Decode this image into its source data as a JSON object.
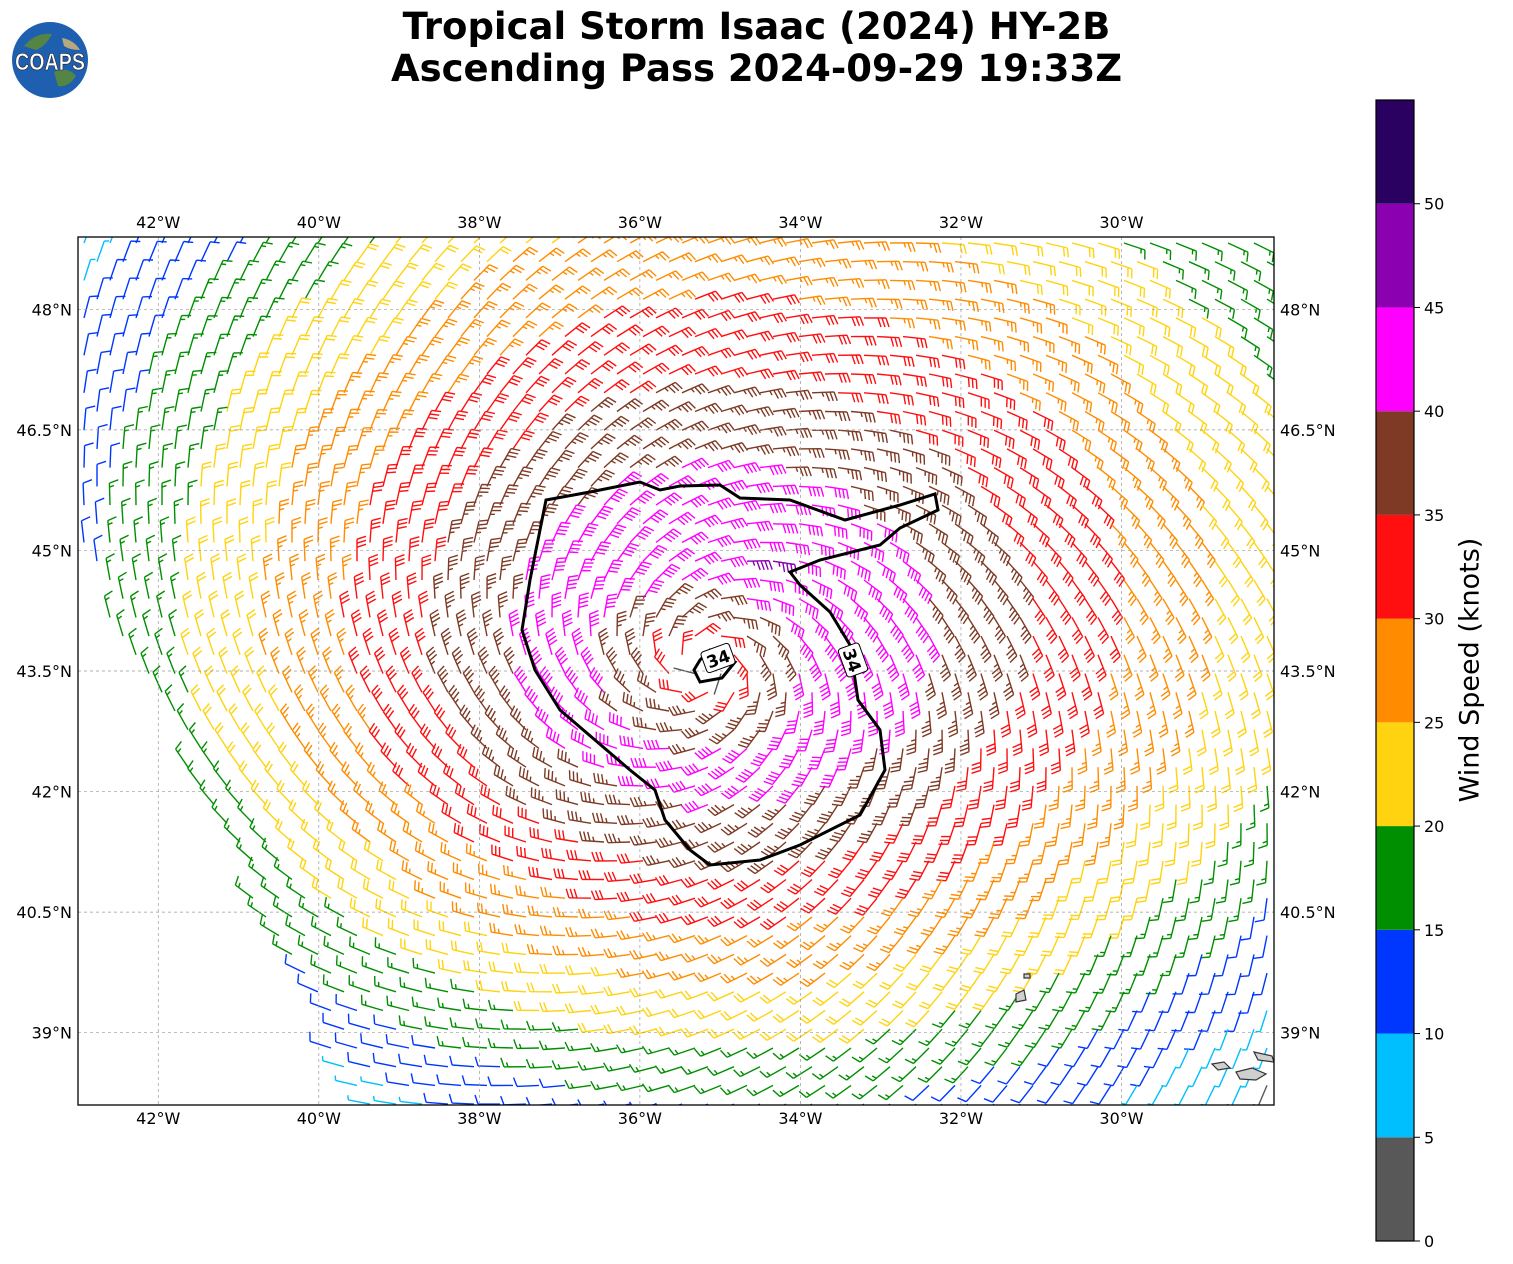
{
  "title": {
    "line1": "Tropical Storm Isaac (2024) HY-2B",
    "line2": "Ascending Pass 2024-09-29 19:33Z"
  },
  "logo": {
    "text": "COAPS",
    "icon": "globe-icon"
  },
  "map": {
    "lon_range": [
      -43,
      -28.1
    ],
    "lat_range": [
      38.1,
      48.9
    ],
    "lon_ticks": [
      "42°W",
      "40°W",
      "38°W",
      "36°W",
      "34°W",
      "32°W",
      "30°W"
    ],
    "lat_ticks": [
      "48°N",
      "46.5°N",
      "45°N",
      "43.5°N",
      "42°N",
      "40.5°N",
      "39°N"
    ],
    "storm_center": {
      "lon": -35.2,
      "lat": 43.6
    },
    "contour_value": 34,
    "contour_labels": [
      "34",
      "34"
    ],
    "gridlines": true
  },
  "colorbar": {
    "label": "Wind Speed (knots)",
    "tick_labels": [
      "0",
      "5",
      "10",
      "15",
      "20",
      "25",
      "30",
      "35",
      "40",
      "45",
      "50"
    ],
    "bins": [
      {
        "min": 0,
        "max": 5,
        "color": "#585858"
      },
      {
        "min": 5,
        "max": 10,
        "color": "#00bfff"
      },
      {
        "min": 10,
        "max": 15,
        "color": "#0037ff"
      },
      {
        "min": 15,
        "max": 20,
        "color": "#008f00"
      },
      {
        "min": 20,
        "max": 25,
        "color": "#ffd30f"
      },
      {
        "min": 25,
        "max": 30,
        "color": "#ff8c00"
      },
      {
        "min": 30,
        "max": 35,
        "color": "#ff0f0f"
      },
      {
        "min": 35,
        "max": 40,
        "color": "#7e3a24"
      },
      {
        "min": 40,
        "max": 45,
        "color": "#ff00ff"
      },
      {
        "min": 45,
        "max": 50,
        "color": "#8b00b0"
      },
      {
        "min": 50,
        "max": 55,
        "color": "#2a0060"
      }
    ]
  }
}
